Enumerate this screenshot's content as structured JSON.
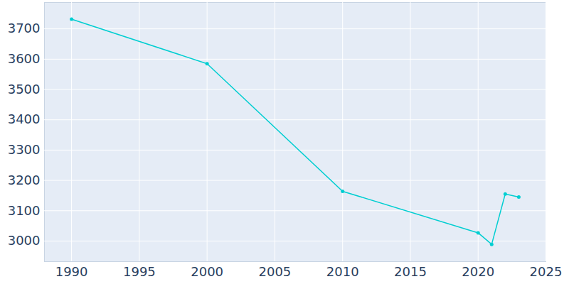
{
  "chart_data": {
    "type": "line",
    "x": [
      1990,
      2000,
      2010,
      2020,
      2021,
      2022,
      2023
    ],
    "values": [
      3732,
      3585,
      3164,
      3027,
      2989,
      3155,
      3145
    ],
    "color": "#00ced1",
    "marker": "circle",
    "xlim": [
      1988,
      2025
    ],
    "xticks": [
      1990,
      1995,
      2000,
      2005,
      2010,
      2015,
      2020,
      2025
    ],
    "ylim": [
      2932,
      3787
    ],
    "yticks": [
      3000,
      3100,
      3200,
      3300,
      3400,
      3500,
      3600,
      3700
    ],
    "grid": true
  }
}
